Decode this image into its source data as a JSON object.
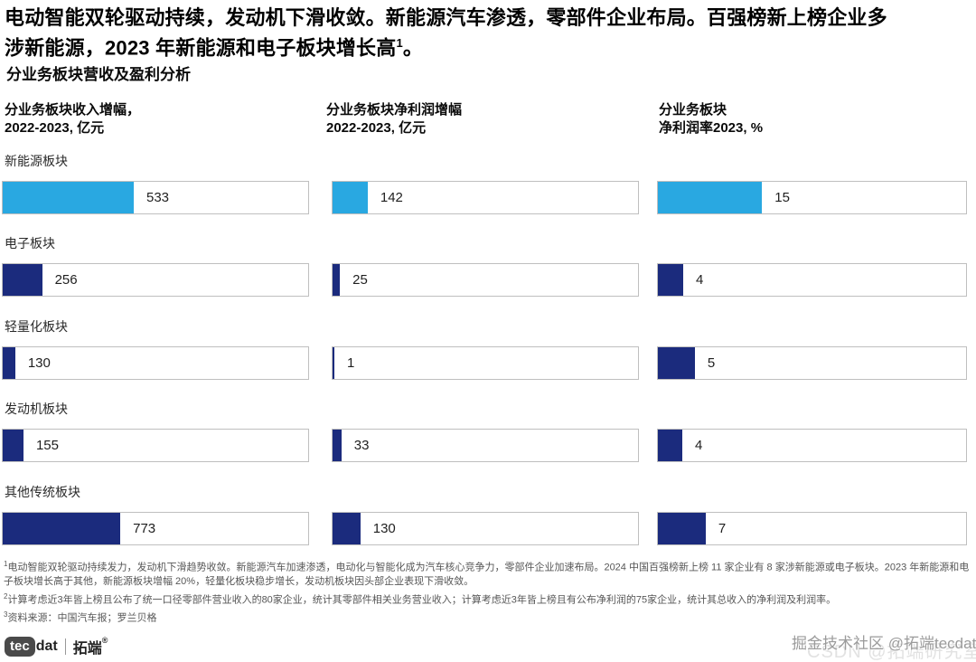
{
  "title": {
    "lines": [
      "电动智能双轮驱动持续，发动机下滑收敛。新能源汽车渗透，零部件企业布局。百强榜新上榜企业多",
      "涉新能源，2023 年新能源和电子板块增长高"
    ],
    "sup": "1",
    "end": "。"
  },
  "subtitle": "分业务板块营收及盈利分析",
  "columns": [
    {
      "line1": "分业务板块收入增幅，",
      "line2": "2022-2023, 亿元"
    },
    {
      "line1": "分业务板块净利润增幅",
      "line2": "2022-2023, 亿元"
    },
    {
      "line1": "分业务板块",
      "line2": "净利润率2023, %"
    }
  ],
  "rows": [
    {
      "label": "新能源板块",
      "highlight": true,
      "values": [
        533,
        142,
        15
      ],
      "bar_fill_pct": [
        42.9,
        11.5,
        33.8
      ]
    },
    {
      "label": "电子板块",
      "highlight": false,
      "values": [
        256,
        25,
        4
      ],
      "bar_fill_pct": [
        12.9,
        2.4,
        8.2
      ]
    },
    {
      "label": "轻量化板块",
      "highlight": false,
      "values": [
        130,
        1,
        5
      ],
      "bar_fill_pct": [
        4.1,
        0.6,
        12.0
      ]
    },
    {
      "label": "发动机板块",
      "highlight": false,
      "values": [
        155,
        33,
        4
      ],
      "bar_fill_pct": [
        6.8,
        2.9,
        7.9
      ]
    },
    {
      "label": "其他传统板块",
      "highlight": false,
      "values": [
        773,
        130,
        7
      ],
      "bar_fill_pct": [
        38.5,
        9.1,
        15.5
      ]
    }
  ],
  "chart_data": {
    "type": "bar",
    "orientation": "horizontal",
    "title": "分业务板块营收及盈利分析",
    "categories": [
      "新能源板块",
      "电子板块",
      "轻量化板块",
      "发动机板块",
      "其他传统板块"
    ],
    "series": [
      {
        "name": "分业务板块收入增幅，2022-2023, 亿元",
        "values": [
          533,
          256,
          130,
          155,
          773
        ]
      },
      {
        "name": "分业务板块净利润增幅 2022-2023, 亿元",
        "values": [
          142,
          25,
          1,
          33,
          130
        ]
      },
      {
        "name": "分业务板块净利润率2023, %",
        "values": [
          15,
          4,
          5,
          4,
          7
        ]
      }
    ],
    "data_labels": true,
    "highlight_category": "新能源板块",
    "legend_position": "none",
    "grid": false
  },
  "footnotes": [
    {
      "marker": "1",
      "text": "电动智能双轮驱动持续发力，发动机下滑趋势收敛。新能源汽车加速渗透，电动化与智能化成为汽车核心竞争力，零部件企业加速布局。2024 中国百强榜新上榜 11 家企业有 8 家涉新能源或电子板块。2023 年新能源和电子板块增长高于其他，新能源板块增幅 20%，轻量化板块稳步增长，发动机板块因头部企业表现下滑收敛。"
    },
    {
      "marker": "2",
      "text": "计算考虑近3年皆上榜且公布了统一口径零部件营业收入的80家企业，统计其零部件相关业务营业收入；计算考虑近3年皆上榜且有公布净利润的75家企业，统计其总收入的净利润及利润率。"
    },
    {
      "marker": "3",
      "text": "资料来源：中国汽车报；罗兰贝格"
    }
  ],
  "logo": {
    "badge": "tec",
    "suffix": "dat",
    "cn": "拓端",
    "reg": "®"
  },
  "watermarks": {
    "front": "掘金技术社区 @拓端tecdat",
    "back": "CSDN @拓端研究室"
  },
  "colors": {
    "accent_blue": "#29A8E1",
    "navy": "#1B2B7D",
    "bar_border": "#BFBFBF",
    "footnote_gray": "#565656"
  }
}
